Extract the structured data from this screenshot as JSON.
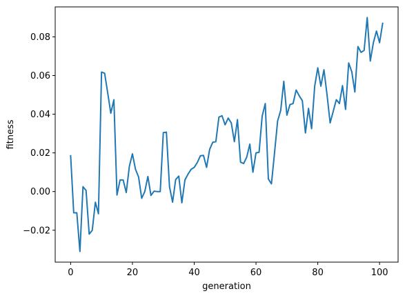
{
  "chart_data": {
    "type": "line",
    "xlabel": "generation",
    "ylabel": "fitness",
    "xlim": [
      -5,
      106
    ],
    "ylim": [
      -0.0365,
      0.0955
    ],
    "xticks": [
      0,
      20,
      40,
      60,
      80,
      100
    ],
    "xtick_labels": [
      "0",
      "20",
      "40",
      "60",
      "80",
      "100"
    ],
    "yticks": [
      -0.02,
      0.0,
      0.02,
      0.04,
      0.06,
      0.08
    ],
    "ytick_labels": [
      "−0.02",
      "0.00",
      "0.02",
      "0.04",
      "0.06",
      "0.08"
    ],
    "grid": false,
    "series": [
      {
        "color": "#1f77b4",
        "x": [
          0,
          1,
          2,
          3,
          4,
          5,
          6,
          7,
          8,
          9,
          10,
          11,
          12,
          13,
          14,
          15,
          16,
          17,
          18,
          19,
          20,
          21,
          22,
          23,
          24,
          25,
          26,
          27,
          28,
          29,
          30,
          31,
          32,
          33,
          34,
          35,
          36,
          37,
          38,
          39,
          40,
          41,
          42,
          43,
          44,
          45,
          46,
          47,
          48,
          49,
          50,
          51,
          52,
          53,
          54,
          55,
          56,
          57,
          58,
          59,
          60,
          61,
          62,
          63,
          64,
          65,
          66,
          67,
          68,
          69,
          70,
          71,
          72,
          73,
          74,
          75,
          76,
          77,
          78,
          79,
          80,
          81,
          82,
          83,
          84,
          85,
          86,
          87,
          88,
          89,
          90,
          91,
          92,
          93,
          94,
          95,
          96,
          97,
          98,
          99,
          100,
          101
        ],
        "values": [
          0.0185,
          -0.011,
          -0.011,
          -0.031,
          0.0025,
          0.0005,
          -0.022,
          -0.02,
          -0.0055,
          -0.0115,
          0.0618,
          0.0612,
          0.051,
          0.0405,
          0.0475,
          -0.0018,
          0.006,
          0.006,
          -0.0005,
          0.013,
          0.0195,
          0.0115,
          0.0075,
          -0.0035,
          0.0,
          0.0078,
          -0.002,
          0.0002,
          0.0,
          0.0,
          0.0305,
          0.0307,
          0.0025,
          -0.0055,
          0.0062,
          0.008,
          -0.0058,
          0.006,
          0.009,
          0.0115,
          0.0125,
          0.015,
          0.0185,
          0.0187,
          0.0125,
          0.0218,
          0.0255,
          0.0258,
          0.0385,
          0.0392,
          0.0345,
          0.038,
          0.0355,
          0.0258,
          0.0372,
          0.0152,
          0.0145,
          0.0178,
          0.0245,
          0.01,
          0.02,
          0.0203,
          0.039,
          0.0455,
          0.0065,
          0.004,
          0.02,
          0.0365,
          0.042,
          0.057,
          0.0395,
          0.045,
          0.0455,
          0.0525,
          0.0495,
          0.047,
          0.0303,
          0.043,
          0.0325,
          0.0545,
          0.064,
          0.0545,
          0.063,
          0.05,
          0.0355,
          0.0415,
          0.0475,
          0.0455,
          0.0548,
          0.0425,
          0.0665,
          0.062,
          0.0515,
          0.075,
          0.072,
          0.073,
          0.09,
          0.0675,
          0.077,
          0.083,
          0.077,
          0.087
        ]
      }
    ]
  }
}
